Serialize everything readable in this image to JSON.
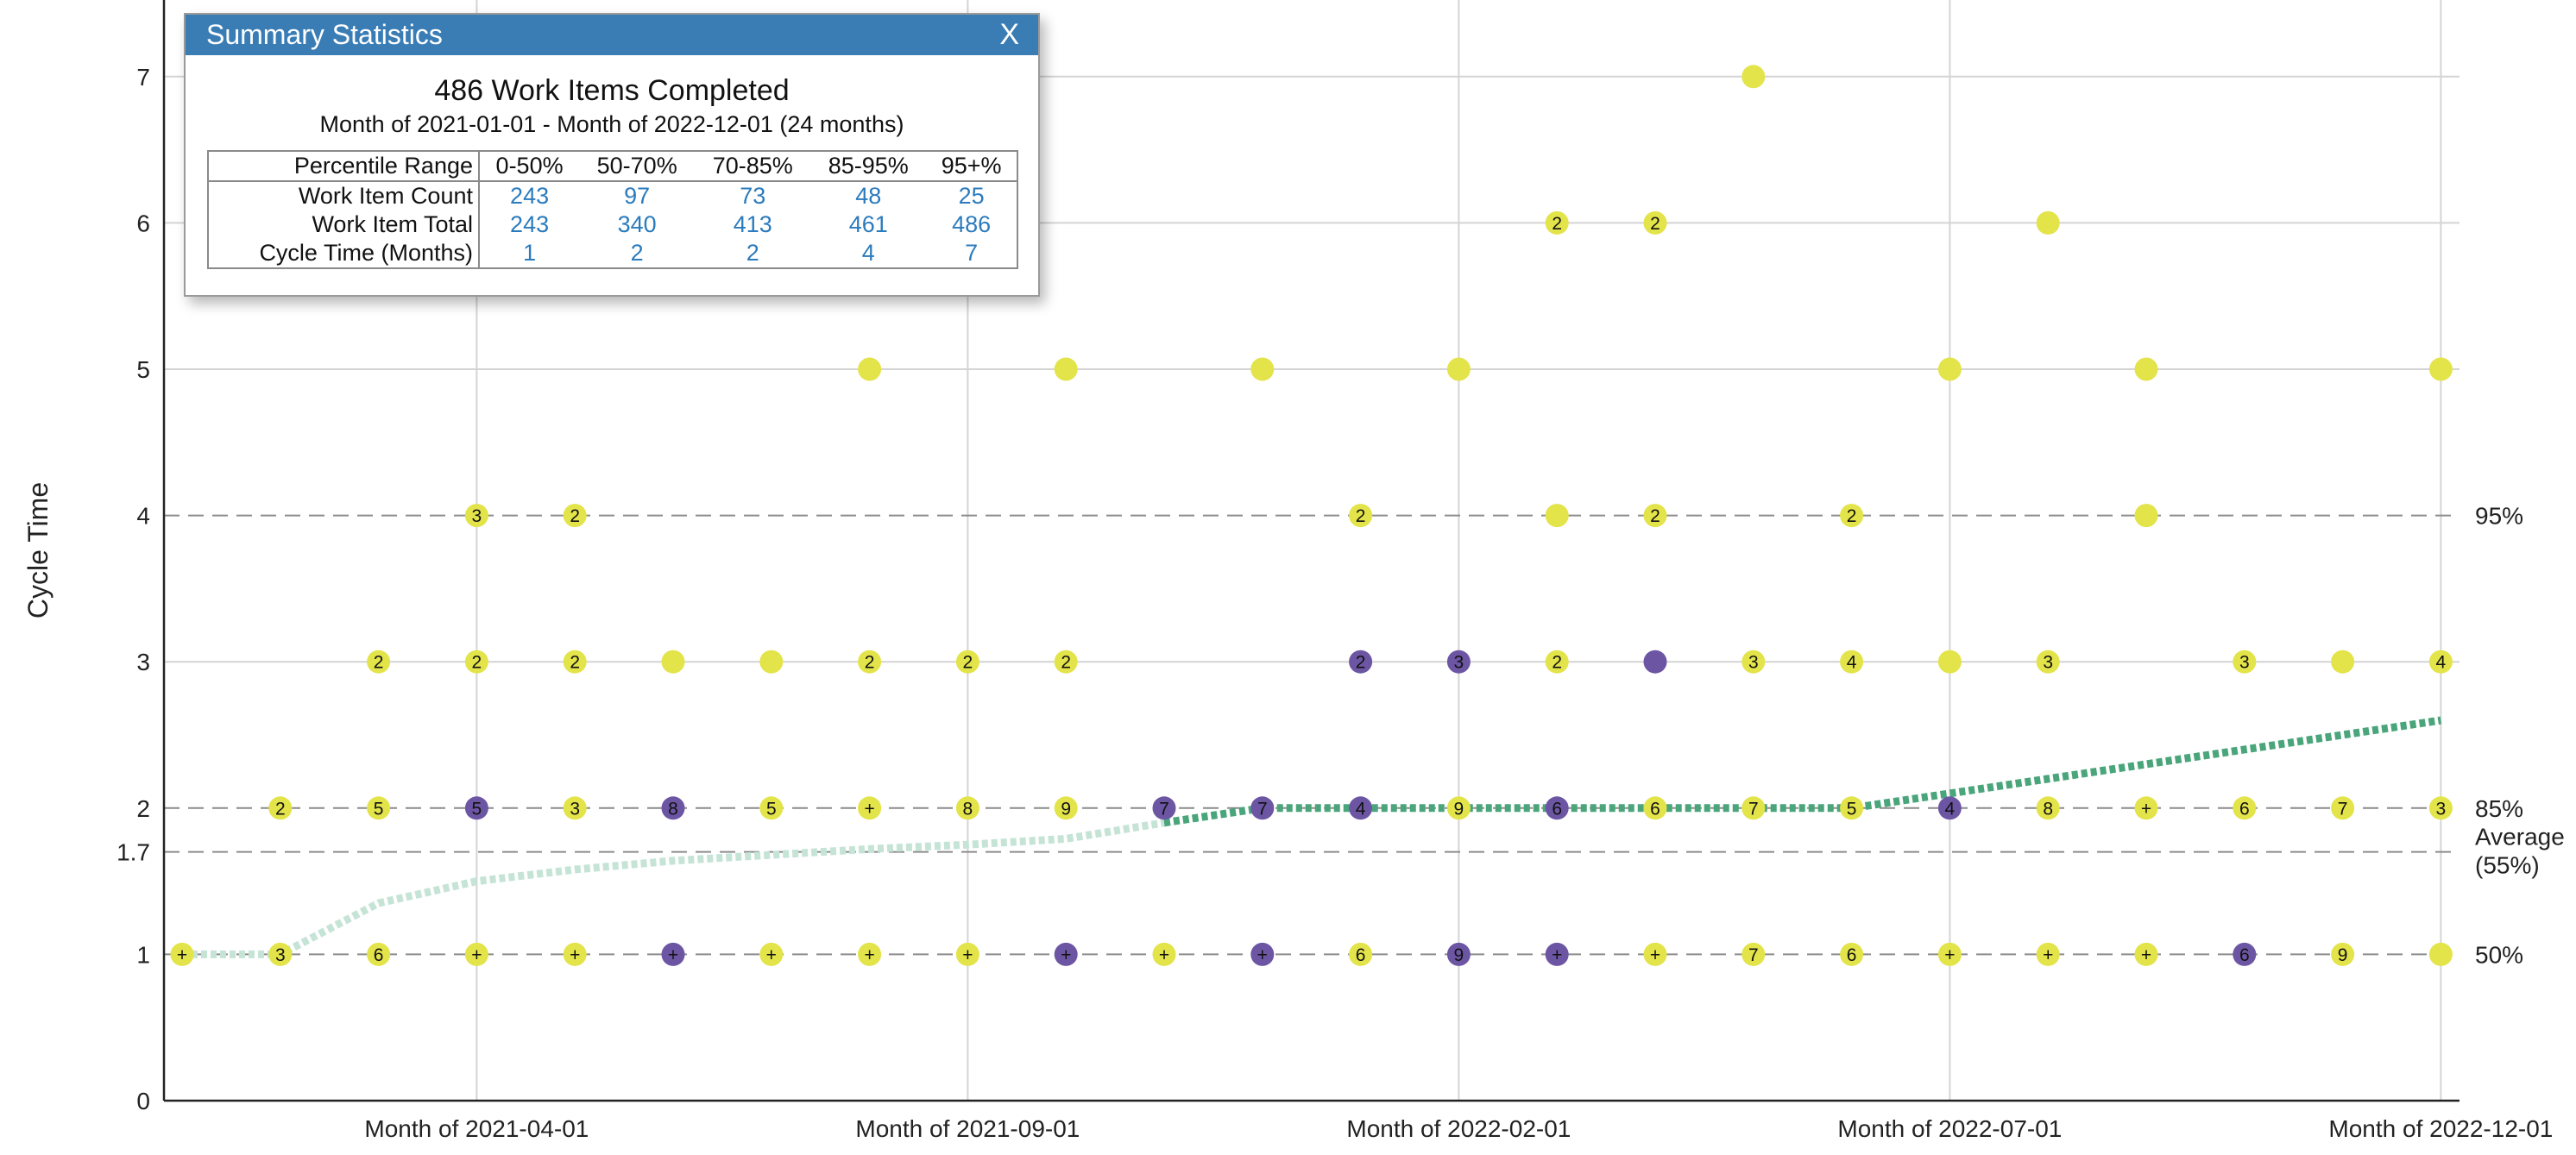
{
  "chart_data": {
    "type": "scatter",
    "ylabel": "Cycle Time",
    "ylim": [
      0,
      7.5
    ],
    "yticks": [
      0,
      1,
      1.7,
      2,
      3,
      4,
      5,
      6,
      7
    ],
    "x_tick_labels": [
      "Month of 2021-04-01",
      "Month of 2021-09-01",
      "Month of 2022-02-01",
      "Month of 2022-07-01",
      "Month of 2022-12-01"
    ],
    "months": [
      "2021-01-01",
      "2021-02-01",
      "2021-03-01",
      "2021-04-01",
      "2021-05-01",
      "2021-06-01",
      "2021-07-01",
      "2021-08-01",
      "2021-09-01",
      "2021-10-01",
      "2021-11-01",
      "2021-12-01",
      "2022-01-01",
      "2022-02-01",
      "2022-03-01",
      "2022-04-01",
      "2022-05-01",
      "2022-06-01",
      "2022-07-01",
      "2022-08-01",
      "2022-09-01",
      "2022-10-01",
      "2022-11-01",
      "2022-12-01"
    ],
    "percentile_lines": [
      {
        "y": 4,
        "label": "95%"
      },
      {
        "y": 2,
        "label": "85%"
      },
      {
        "y": 1.7,
        "label": "Average\n(55%)"
      },
      {
        "y": 1,
        "label": "50%"
      }
    ],
    "colors": {
      "yellow": "#e3e34a",
      "purple": "#6c56a3",
      "trend_past": "#c5e4d6",
      "trend_now": "#4aa57b",
      "grid": "#d4d4d4",
      "dash": "#8c8c8c"
    },
    "points": [
      {
        "x": 0,
        "y": 1,
        "label": "+",
        "color": "yellow"
      },
      {
        "x": 1,
        "y": 1,
        "label": "3",
        "color": "yellow"
      },
      {
        "x": 1,
        "y": 2,
        "label": "2",
        "color": "yellow"
      },
      {
        "x": 2,
        "y": 1,
        "label": "6",
        "color": "yellow"
      },
      {
        "x": 2,
        "y": 2,
        "label": "5",
        "color": "yellow"
      },
      {
        "x": 2,
        "y": 3,
        "label": "2",
        "color": "yellow"
      },
      {
        "x": 3,
        "y": 1,
        "label": "+",
        "color": "yellow"
      },
      {
        "x": 3,
        "y": 2,
        "label": "5",
        "color": "purple"
      },
      {
        "x": 3,
        "y": 3,
        "label": "2",
        "color": "yellow"
      },
      {
        "x": 3,
        "y": 4,
        "label": "3",
        "color": "yellow"
      },
      {
        "x": 4,
        "y": 1,
        "label": "+",
        "color": "yellow"
      },
      {
        "x": 4,
        "y": 2,
        "label": "3",
        "color": "yellow"
      },
      {
        "x": 4,
        "y": 3,
        "label": "2",
        "color": "yellow"
      },
      {
        "x": 4,
        "y": 4,
        "label": "2",
        "color": "yellow"
      },
      {
        "x": 5,
        "y": 1,
        "label": "+",
        "color": "purple"
      },
      {
        "x": 5,
        "y": 2,
        "label": "8",
        "color": "purple"
      },
      {
        "x": 5,
        "y": 3,
        "label": "",
        "color": "yellow"
      },
      {
        "x": 6,
        "y": 1,
        "label": "+",
        "color": "yellow"
      },
      {
        "x": 6,
        "y": 2,
        "label": "5",
        "color": "yellow"
      },
      {
        "x": 6,
        "y": 3,
        "label": "",
        "color": "yellow"
      },
      {
        "x": 7,
        "y": 1,
        "label": "+",
        "color": "yellow"
      },
      {
        "x": 7,
        "y": 2,
        "label": "+",
        "color": "yellow"
      },
      {
        "x": 7,
        "y": 3,
        "label": "2",
        "color": "yellow"
      },
      {
        "x": 7,
        "y": 5,
        "label": "",
        "color": "yellow"
      },
      {
        "x": 8,
        "y": 1,
        "label": "+",
        "color": "yellow"
      },
      {
        "x": 8,
        "y": 2,
        "label": "8",
        "color": "yellow"
      },
      {
        "x": 8,
        "y": 3,
        "label": "2",
        "color": "yellow"
      },
      {
        "x": 9,
        "y": 1,
        "label": "+",
        "color": "purple"
      },
      {
        "x": 9,
        "y": 2,
        "label": "9",
        "color": "yellow"
      },
      {
        "x": 9,
        "y": 3,
        "label": "2",
        "color": "yellow"
      },
      {
        "x": 9,
        "y": 5,
        "label": "",
        "color": "yellow"
      },
      {
        "x": 10,
        "y": 1,
        "label": "+",
        "color": "yellow"
      },
      {
        "x": 10,
        "y": 2,
        "label": "7",
        "color": "purple"
      },
      {
        "x": 11,
        "y": 1,
        "label": "+",
        "color": "purple"
      },
      {
        "x": 11,
        "y": 2,
        "label": "7",
        "color": "purple"
      },
      {
        "x": 11,
        "y": 5,
        "label": "",
        "color": "yellow"
      },
      {
        "x": 12,
        "y": 1,
        "label": "6",
        "color": "yellow"
      },
      {
        "x": 12,
        "y": 2,
        "label": "4",
        "color": "purple"
      },
      {
        "x": 12,
        "y": 3,
        "label": "2",
        "color": "purple"
      },
      {
        "x": 12,
        "y": 4,
        "label": "2",
        "color": "yellow"
      },
      {
        "x": 13,
        "y": 1,
        "label": "9",
        "color": "purple"
      },
      {
        "x": 13,
        "y": 2,
        "label": "9",
        "color": "yellow"
      },
      {
        "x": 13,
        "y": 3,
        "label": "3",
        "color": "purple"
      },
      {
        "x": 13,
        "y": 5,
        "label": "",
        "color": "yellow"
      },
      {
        "x": 14,
        "y": 1,
        "label": "+",
        "color": "purple"
      },
      {
        "x": 14,
        "y": 2,
        "label": "6",
        "color": "purple"
      },
      {
        "x": 14,
        "y": 3,
        "label": "2",
        "color": "yellow"
      },
      {
        "x": 14,
        "y": 4,
        "label": "",
        "color": "yellow"
      },
      {
        "x": 14,
        "y": 6,
        "label": "2",
        "color": "yellow"
      },
      {
        "x": 15,
        "y": 1,
        "label": "+",
        "color": "yellow"
      },
      {
        "x": 15,
        "y": 2,
        "label": "6",
        "color": "yellow"
      },
      {
        "x": 15,
        "y": 3,
        "label": "",
        "color": "purple"
      },
      {
        "x": 15,
        "y": 4,
        "label": "2",
        "color": "yellow"
      },
      {
        "x": 15,
        "y": 6,
        "label": "2",
        "color": "yellow"
      },
      {
        "x": 16,
        "y": 1,
        "label": "7",
        "color": "yellow"
      },
      {
        "x": 16,
        "y": 2,
        "label": "7",
        "color": "yellow"
      },
      {
        "x": 16,
        "y": 3,
        "label": "3",
        "color": "yellow"
      },
      {
        "x": 16,
        "y": 7,
        "label": "",
        "color": "yellow"
      },
      {
        "x": 17,
        "y": 1,
        "label": "6",
        "color": "yellow"
      },
      {
        "x": 17,
        "y": 2,
        "label": "5",
        "color": "yellow"
      },
      {
        "x": 17,
        "y": 3,
        "label": "4",
        "color": "yellow"
      },
      {
        "x": 17,
        "y": 4,
        "label": "2",
        "color": "yellow"
      },
      {
        "x": 18,
        "y": 1,
        "label": "+",
        "color": "yellow"
      },
      {
        "x": 18,
        "y": 2,
        "label": "4",
        "color": "purple"
      },
      {
        "x": 18,
        "y": 3,
        "label": "",
        "color": "yellow"
      },
      {
        "x": 18,
        "y": 5,
        "label": "",
        "color": "yellow"
      },
      {
        "x": 19,
        "y": 1,
        "label": "+",
        "color": "yellow"
      },
      {
        "x": 19,
        "y": 2,
        "label": "8",
        "color": "yellow"
      },
      {
        "x": 19,
        "y": 3,
        "label": "3",
        "color": "yellow"
      },
      {
        "x": 19,
        "y": 6,
        "label": "",
        "color": "yellow"
      },
      {
        "x": 20,
        "y": 1,
        "label": "+",
        "color": "yellow"
      },
      {
        "x": 20,
        "y": 2,
        "label": "+",
        "color": "yellow"
      },
      {
        "x": 20,
        "y": 4,
        "label": "",
        "color": "yellow"
      },
      {
        "x": 20,
        "y": 5,
        "label": "",
        "color": "yellow"
      },
      {
        "x": 21,
        "y": 1,
        "label": "6",
        "color": "purple"
      },
      {
        "x": 21,
        "y": 2,
        "label": "6",
        "color": "yellow"
      },
      {
        "x": 21,
        "y": 3,
        "label": "3",
        "color": "yellow"
      },
      {
        "x": 22,
        "y": 1,
        "label": "9",
        "color": "yellow"
      },
      {
        "x": 22,
        "y": 2,
        "label": "7",
        "color": "yellow"
      },
      {
        "x": 22,
        "y": 3,
        "label": "",
        "color": "yellow"
      },
      {
        "x": 23,
        "y": 1,
        "label": "",
        "color": "yellow"
      },
      {
        "x": 23,
        "y": 2,
        "label": "3",
        "color": "yellow"
      },
      {
        "x": 23,
        "y": 3,
        "label": "4",
        "color": "yellow"
      },
      {
        "x": 23,
        "y": 5,
        "label": "",
        "color": "yellow"
      }
    ],
    "trend": [
      {
        "x": 0,
        "y": 1.0
      },
      {
        "x": 1,
        "y": 1.0
      },
      {
        "x": 2,
        "y": 1.35
      },
      {
        "x": 3,
        "y": 1.5
      },
      {
        "x": 4,
        "y": 1.58
      },
      {
        "x": 5,
        "y": 1.64
      },
      {
        "x": 6,
        "y": 1.68
      },
      {
        "x": 7,
        "y": 1.72
      },
      {
        "x": 8,
        "y": 1.75
      },
      {
        "x": 9,
        "y": 1.79
      },
      {
        "x": 10,
        "y": 1.9
      },
      {
        "x": 11,
        "y": 2.0
      },
      {
        "x": 12,
        "y": 2.0
      },
      {
        "x": 13,
        "y": 2.0
      },
      {
        "x": 14,
        "y": 2.0
      },
      {
        "x": 15,
        "y": 2.0
      },
      {
        "x": 16,
        "y": 2.0
      },
      {
        "x": 17,
        "y": 2.0
      },
      {
        "x": 18,
        "y": 2.1
      },
      {
        "x": 19,
        "y": 2.2
      },
      {
        "x": 20,
        "y": 2.3
      },
      {
        "x": 21,
        "y": 2.4
      },
      {
        "x": 22,
        "y": 2.5
      },
      {
        "x": 23,
        "y": 2.6
      }
    ],
    "trend_highlight_from": 10
  },
  "stats_panel": {
    "title": "Summary Statistics",
    "close_label": "X",
    "heading": "486 Work Items Completed",
    "subheading": "Month of 2021-01-01 - Month of 2022-12-01 (24 months)",
    "table": {
      "header_label": "Percentile Range",
      "columns": [
        "0-50%",
        "50-70%",
        "70-85%",
        "85-95%",
        "95+%"
      ],
      "rows": [
        {
          "label": "Work Item Count",
          "values": [
            "243",
            "97",
            "73",
            "48",
            "25"
          ]
        },
        {
          "label": "Work Item Total",
          "values": [
            "243",
            "340",
            "413",
            "461",
            "486"
          ]
        },
        {
          "label": "Cycle Time (Months)",
          "values": [
            "1",
            "2",
            "2",
            "4",
            "7"
          ]
        }
      ]
    }
  }
}
